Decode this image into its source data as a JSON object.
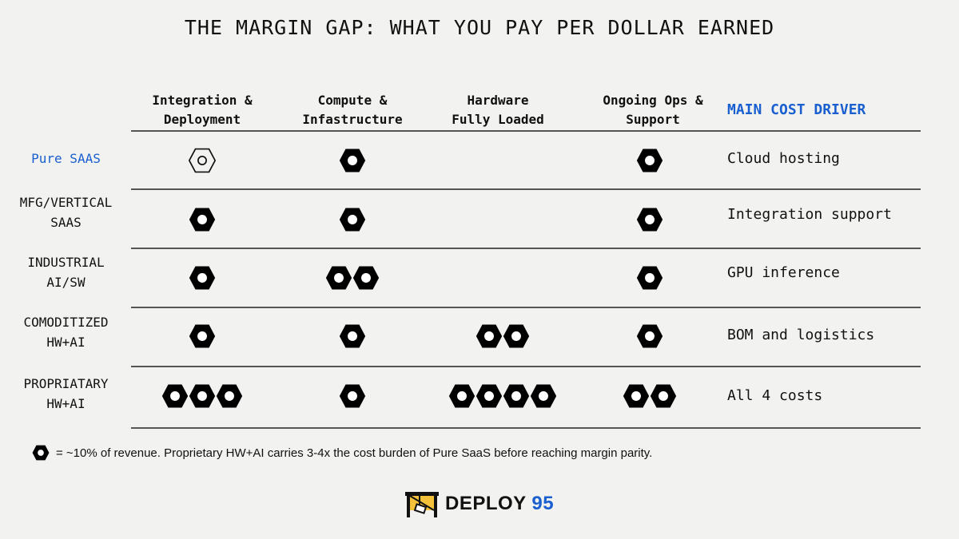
{
  "title": "THE MARGIN GAP: WHAT YOU PAY PER DOLLAR EARNED",
  "columns": [
    {
      "line1": "Integration &",
      "line2": "Deployment"
    },
    {
      "line1": "Compute &",
      "line2": "Infastructure"
    },
    {
      "line1": "Hardware",
      "line2": "Fully Loaded"
    },
    {
      "line1": "Ongoing Ops &",
      "line2": "Support"
    }
  ],
  "driver_header": "MAIN COST DRIVER",
  "rows": [
    {
      "line1": "Pure SAAS",
      "line2": "",
      "counts": [
        1,
        1,
        0,
        1
      ],
      "outline_first": true,
      "driver": "Cloud hosting"
    },
    {
      "line1": "MFG/VERTICAL",
      "line2": "SAAS",
      "counts": [
        1,
        1,
        0,
        1
      ],
      "driver": "Integration support"
    },
    {
      "line1": "INDUSTRIAL",
      "line2": "AI/SW",
      "counts": [
        1,
        2,
        0,
        1
      ],
      "driver": "GPU inference"
    },
    {
      "line1": "COMODITIZED",
      "line2": "HW+AI",
      "counts": [
        1,
        1,
        2,
        1
      ],
      "driver": "BOM and logistics"
    },
    {
      "line1": "PROPRIATARY",
      "line2": "HW+AI",
      "counts": [
        3,
        1,
        4,
        2
      ],
      "driver": "All 4 costs"
    }
  ],
  "legend": "= ~10% of revenue. Proprietary HW+AI carries 3-4x the cost burden of Pure SaaS before reaching margin parity.",
  "logo": {
    "word": "DEPLOY",
    "number": "95"
  },
  "colors": {
    "accent": "#1a5fd0",
    "text": "#111111",
    "background": "#f2f2f0"
  }
}
